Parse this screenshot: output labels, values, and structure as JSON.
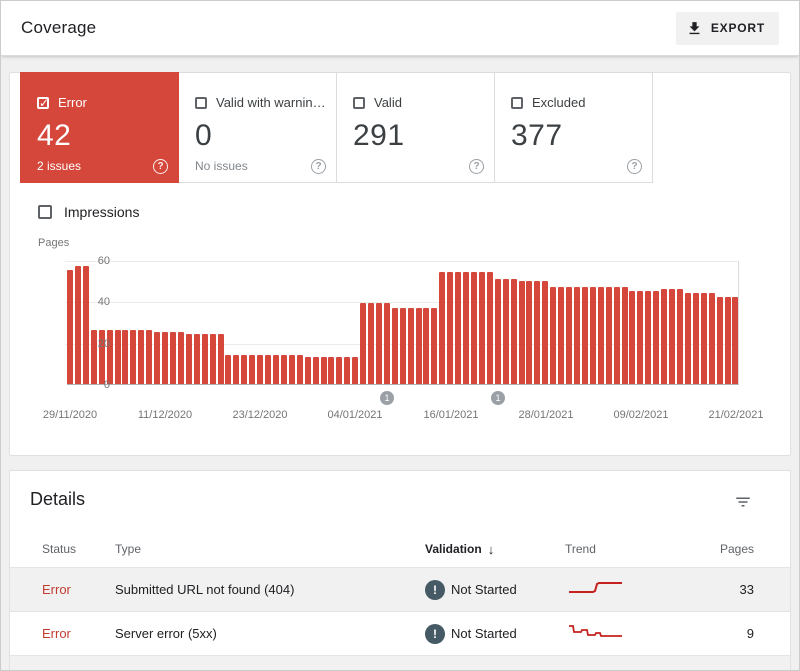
{
  "header": {
    "title": "Coverage",
    "export_label": "EXPORT"
  },
  "summary_cards": [
    {
      "label": "Error",
      "value": "42",
      "sub": "2 issues",
      "checked": true,
      "selected": true
    },
    {
      "label": "Valid with warnin…",
      "value": "0",
      "sub": "No issues",
      "checked": false,
      "selected": false
    },
    {
      "label": "Valid",
      "value": "291",
      "sub": "",
      "checked": false,
      "selected": false
    },
    {
      "label": "Excluded",
      "value": "377",
      "sub": "",
      "checked": false,
      "selected": false
    }
  ],
  "impressions_label": "Impressions",
  "chart_data": {
    "type": "bar",
    "title": "",
    "ylabel": "Pages",
    "xlabel": "",
    "ylim": [
      0,
      60
    ],
    "yticks": [
      60,
      40,
      20,
      0
    ],
    "grid": true,
    "bar_color": "#d5473b",
    "x_labels": [
      "29/11/2020",
      "11/12/2020",
      "23/12/2020",
      "04/01/2021",
      "16/01/2021",
      "28/01/2021",
      "09/02/2021",
      "21/02/2021"
    ],
    "x_label_bar_indices": [
      0,
      12,
      24,
      36,
      48,
      60,
      72,
      84
    ],
    "values": [
      55,
      57,
      57,
      26,
      26,
      26,
      26,
      26,
      26,
      26,
      26,
      25,
      25,
      25,
      25,
      24,
      24,
      24,
      24,
      24,
      14,
      14,
      14,
      14,
      14,
      14,
      14,
      14,
      14,
      14,
      13,
      13,
      13,
      13,
      13,
      13,
      13,
      39,
      39,
      39,
      39,
      37,
      37,
      37,
      37,
      37,
      37,
      54,
      54,
      54,
      54,
      54,
      54,
      54,
      51,
      51,
      51,
      50,
      50,
      50,
      50,
      47,
      47,
      47,
      47,
      47,
      47,
      47,
      47,
      47,
      47,
      45,
      45,
      45,
      45,
      46,
      46,
      46,
      44,
      44,
      44,
      44,
      42,
      42,
      42
    ],
    "markers": [
      {
        "bar_index": 40,
        "label": "1"
      },
      {
        "bar_index": 54,
        "label": "1"
      }
    ]
  },
  "details": {
    "title": "Details",
    "columns": [
      "Status",
      "Type",
      "Validation",
      "Trend",
      "Pages"
    ],
    "sort_column": "Validation",
    "sort_arrow": "↓",
    "rows": [
      {
        "status": "Error",
        "type": "Submitted URL not found (404)",
        "validation": "Not Started",
        "badge": "!",
        "pages": "33"
      },
      {
        "status": "Error",
        "type": "Server error (5xx)",
        "validation": "Not Started",
        "badge": "!",
        "pages": "9"
      }
    ]
  },
  "colors": {
    "error_red": "#d5473b",
    "row_error_text": "#c23c30",
    "badge_bg": "#455a64",
    "marker_gray": "#9aa0a6"
  }
}
